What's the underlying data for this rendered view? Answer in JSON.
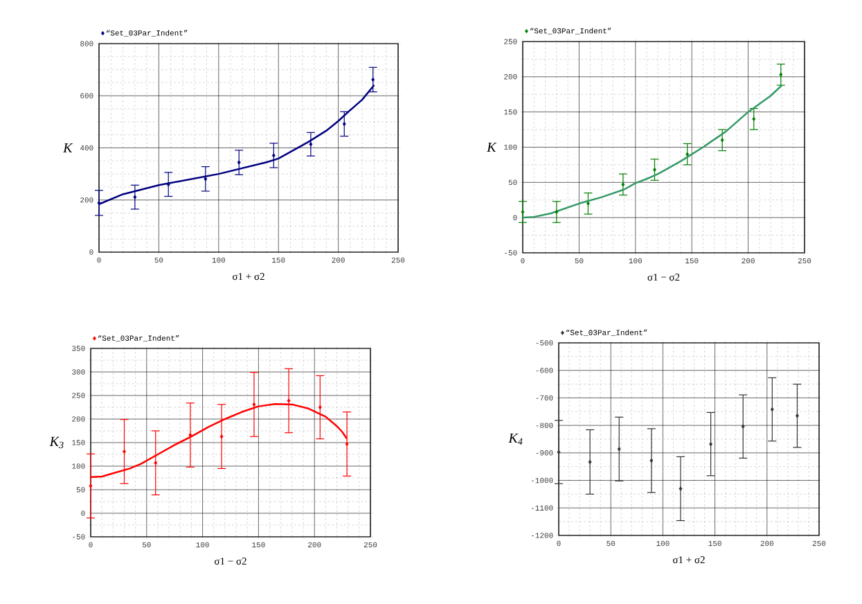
{
  "chart_data": [
    {
      "type": "scatter",
      "xlabel": "σ1 + σ2",
      "ylabel": "K",
      "xlim": [
        0,
        250
      ],
      "ylim": [
        0,
        800
      ],
      "xticks": [
        0,
        50,
        100,
        150,
        200,
        250
      ],
      "yticks": [
        0,
        200,
        400,
        600,
        800
      ],
      "grid": true,
      "legend": "top left",
      "marker": "diamond",
      "series": [
        {
          "name": "“Set_03Par_Indent”",
          "color": "#000080",
          "x": [
            0,
            30,
            58,
            89,
            117,
            146,
            177,
            205,
            229
          ],
          "values": [
            189,
            211,
            260,
            281,
            344,
            371,
            414,
            492,
            662
          ],
          "errors": [
            48,
            46,
            46,
            47,
            47,
            47,
            45,
            47,
            47
          ]
        },
        {
          "type": "line",
          "marker": "none",
          "color": "#000080",
          "x": [
            0,
            20,
            50,
            100,
            140,
            150,
            175,
            190,
            200,
            210,
            220,
            230
          ],
          "values": [
            184,
            222,
            257,
            300,
            345,
            359,
            423,
            466,
            503,
            545,
            585,
            641
          ]
        }
      ]
    },
    {
      "type": "scatter",
      "xlabel": "σ1 − σ2",
      "ylabel": "K",
      "xlim": [
        0,
        250
      ],
      "ylim": [
        -50,
        250
      ],
      "xticks": [
        0,
        50,
        100,
        150,
        200,
        250
      ],
      "yticks": [
        -50,
        0,
        50,
        100,
        150,
        200,
        250
      ],
      "grid": true,
      "legend": "top left",
      "marker": "diamond",
      "series": [
        {
          "name": "“Set_03Par_Indent”",
          "color": "#008000",
          "x": [
            0,
            30,
            58,
            89,
            117,
            146,
            177,
            205,
            229
          ],
          "values": [
            8,
            8,
            20,
            47,
            68,
            90,
            110,
            140,
            203
          ],
          "errors": [
            15,
            15,
            15,
            15,
            15,
            15,
            15,
            15,
            15
          ]
        },
        {
          "type": "line",
          "marker": "none",
          "color": "#339966",
          "x": [
            0,
            10,
            25,
            50,
            70,
            90,
            100,
            110,
            120,
            140,
            150,
            160,
            180,
            200,
            220,
            230
          ],
          "values": [
            0,
            1,
            6,
            20,
            29,
            40,
            49,
            55,
            62,
            80,
            90,
            100,
            122,
            150,
            173,
            188
          ]
        }
      ]
    },
    {
      "type": "scatter",
      "xlabel": "σ1 − σ2",
      "ylabel": "K$_{3}$",
      "xlim": [
        0,
        250
      ],
      "ylim": [
        -50,
        350
      ],
      "xticks": [
        0,
        50,
        100,
        150,
        200,
        250
      ],
      "yticks": [
        -50,
        0,
        50,
        100,
        150,
        200,
        250,
        300,
        350
      ],
      "grid": true,
      "legend": "top left",
      "marker": "diamond",
      "series": [
        {
          "name": "“Set_03Par_Indent”",
          "color": "#ff0000",
          "x": [
            0,
            30,
            58,
            89,
            117,
            146,
            177,
            205,
            229
          ],
          "values": [
            58,
            131,
            107,
            166,
            163,
            231,
            239,
            225,
            147
          ],
          "errors": [
            68,
            68,
            68,
            68,
            68,
            68,
            68,
            67,
            68
          ]
        },
        {
          "type": "line",
          "marker": "none",
          "color": "#ff0000",
          "x": [
            0,
            10,
            20,
            35,
            45,
            60,
            75,
            90,
            105,
            120,
            135,
            150,
            165,
            180,
            195,
            210,
            220,
            225,
            229
          ],
          "values": [
            77,
            78,
            85,
            95,
            105,
            125,
            145,
            163,
            183,
            200,
            215,
            227,
            232,
            231,
            222,
            205,
            185,
            172,
            158
          ]
        }
      ]
    },
    {
      "type": "scatter",
      "xlabel": "σ1 + σ2",
      "ylabel": "K$_{4}$",
      "xlim": [
        0,
        250
      ],
      "ylim": [
        -1200,
        -500
      ],
      "xticks": [
        0,
        50,
        100,
        150,
        200,
        250
      ],
      "yticks": [
        -1200,
        -1100,
        -1000,
        -900,
        -800,
        -700,
        -600,
        -500
      ],
      "grid": true,
      "legend": "top left",
      "marker": "diamond",
      "series": [
        {
          "name": "“Set_03Par_Indent”",
          "color": "#333333",
          "x": [
            0,
            30,
            58,
            89,
            117,
            146,
            177,
            205,
            229
          ],
          "values": [
            -897,
            -933,
            -886,
            -928,
            -1030,
            -868,
            -804,
            -742,
            -765
          ],
          "errors": [
            115,
            117,
            116,
            116,
            116,
            115,
            115,
            115,
            115
          ]
        }
      ]
    }
  ]
}
